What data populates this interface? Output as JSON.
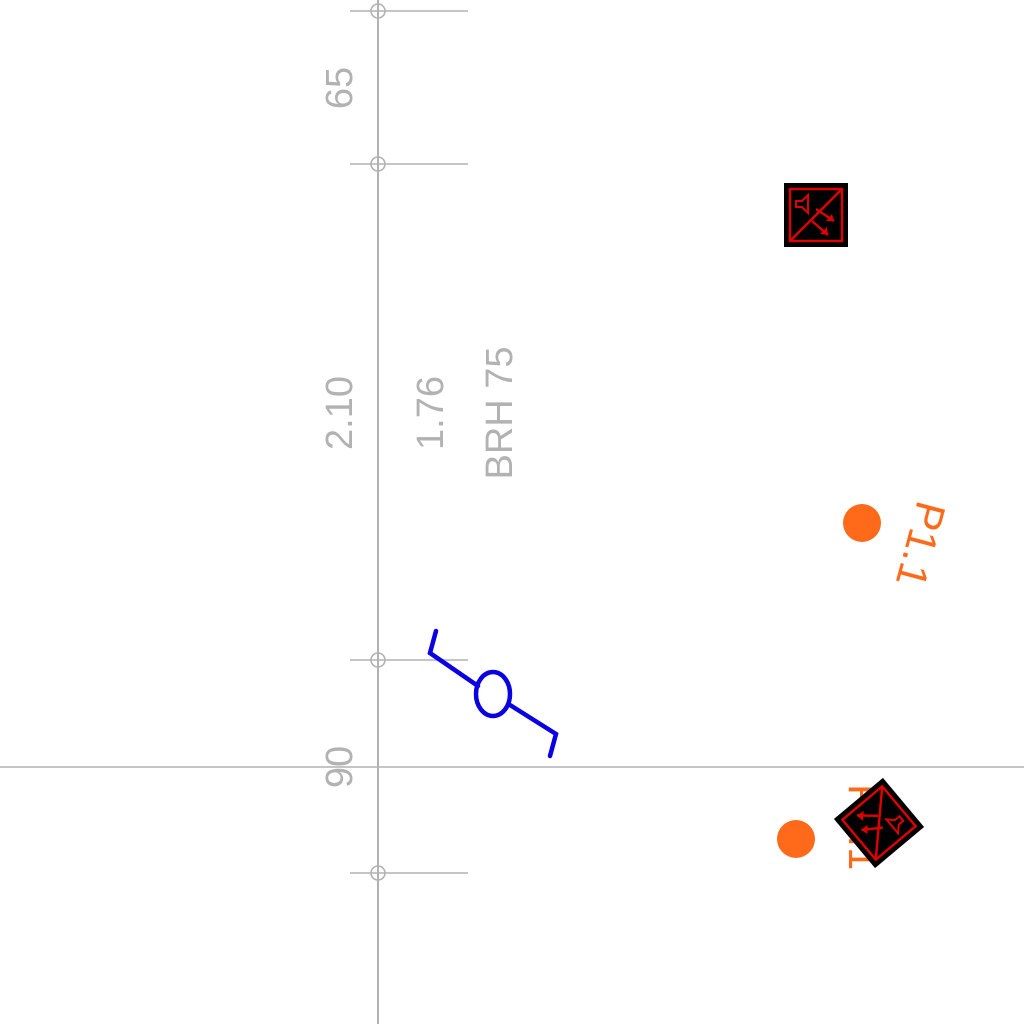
{
  "dimensions": {
    "top_label": "65",
    "height_label": "2.10",
    "sill_label": "1.76",
    "brh_label": "BRH 75",
    "bottom_label": "90"
  },
  "points": {
    "upper_label": "P1.1",
    "lower_label": "P1.1"
  },
  "symbols": {
    "upper_alarm_icon": "alarm-speaker-icon",
    "lower_alarm_icon": "alarm-speaker-icon",
    "window_switch_icon": "window-contact-icon"
  },
  "colors": {
    "dimension": "#b2b2b2",
    "point": "#ff6a1a",
    "alarm_border": "#e10000",
    "alarm_fill": "#000000",
    "switch": "#0a00e0"
  }
}
